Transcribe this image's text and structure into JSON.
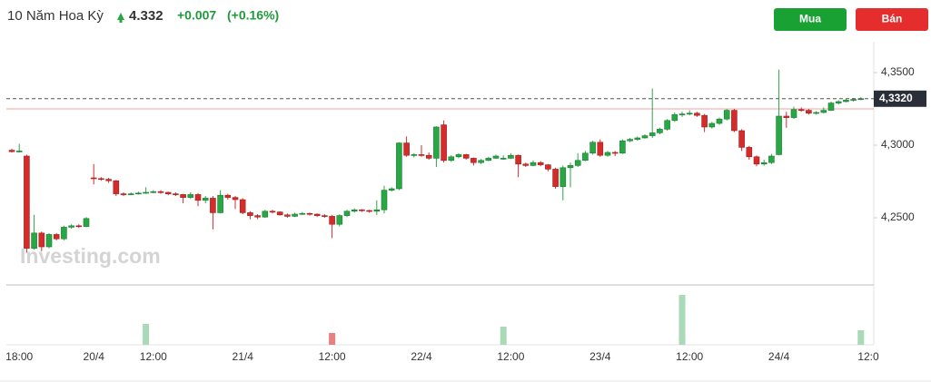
{
  "header": {
    "instrument": "10 Năm Hoa Kỳ",
    "price": "4.332",
    "change": "+0.007",
    "change_pct": "(+0.16%)"
  },
  "buttons": [
    "Mua",
    "Bán"
  ],
  "chart_data": {
    "type": "candlestick",
    "watermark": "Investing.com",
    "up_color": "#27a844",
    "down_color": "#d62b2b",
    "ylim": [
      4.2044,
      4.3656
    ],
    "yticks": [
      {
        "value": 4.35,
        "label": "4,3500"
      },
      {
        "value": 4.3,
        "label": "4,3000"
      },
      {
        "value": 4.25,
        "label": "4,2500"
      }
    ],
    "last_price": {
      "value": 4.332,
      "label": "4,3320"
    },
    "prev_close": 4.325,
    "categories": [
      null,
      "18:00",
      null,
      null,
      null,
      null,
      null,
      null,
      null,
      null,
      null,
      "20/4",
      null,
      null,
      null,
      null,
      null,
      null,
      null,
      "12:00",
      null,
      null,
      null,
      null,
      null,
      null,
      null,
      null,
      null,
      null,
      null,
      "21/4",
      null,
      null,
      null,
      null,
      null,
      null,
      null,
      null,
      null,
      null,
      null,
      "12:00",
      null,
      null,
      null,
      null,
      null,
      null,
      null,
      null,
      null,
      null,
      null,
      "22/4",
      null,
      null,
      null,
      null,
      null,
      null,
      null,
      null,
      null,
      null,
      null,
      "12:00",
      null,
      null,
      null,
      null,
      null,
      null,
      null,
      null,
      null,
      null,
      null,
      "23/4",
      null,
      null,
      null,
      null,
      null,
      null,
      null,
      null,
      null,
      null,
      null,
      "12:00",
      null,
      null,
      null,
      null,
      null,
      null,
      null,
      null,
      null,
      null,
      null,
      "24/4",
      null,
      null,
      null,
      null,
      null,
      null,
      null,
      null,
      null,
      null,
      null,
      "12:0"
    ],
    "open": [
      4.2965,
      4.2955,
      4.2925,
      4.229,
      4.2395,
      4.23,
      4.2385,
      4.2355,
      4.2435,
      4.2445,
      4.244,
      4.2775,
      4.277,
      4.2765,
      4.2755,
      4.2665,
      4.266,
      4.2665,
      4.267,
      4.2675,
      4.268,
      4.2675,
      4.2665,
      4.266,
      4.264,
      4.266,
      4.262,
      4.2635,
      4.2535,
      4.2655,
      4.264,
      4.2625,
      4.2535,
      4.2515,
      4.2505,
      4.2545,
      4.254,
      4.252,
      4.251,
      4.2525,
      4.253,
      4.2525,
      4.2515,
      4.251,
      4.2455,
      4.2515,
      4.2545,
      4.2555,
      4.255,
      4.2545,
      4.2555,
      4.269,
      4.27,
      4.3015,
      4.293,
      4.2935,
      4.293,
      4.291,
      4.314,
      4.2895,
      4.292,
      4.2935,
      4.291,
      4.288,
      4.2895,
      4.291,
      4.2905,
      4.291,
      4.293,
      4.287,
      4.286,
      4.288,
      4.2865,
      4.2835,
      4.2715,
      4.2845,
      4.286,
      4.2895,
      4.2945,
      4.302,
      4.293,
      4.295,
      4.2945,
      4.303,
      4.304,
      4.305,
      4.3065,
      4.3085,
      4.311,
      4.317,
      4.321,
      4.3215,
      4.322,
      4.3205,
      4.3125,
      4.315,
      4.318,
      4.324,
      4.31,
      4.2985,
      4.292,
      4.287,
      4.288,
      4.2935,
      4.32,
      4.319,
      4.3245,
      4.324,
      4.322,
      4.3225,
      4.324,
      4.329,
      4.33,
      4.331,
      4.3315,
      null
    ],
    "high": [
      4.2975,
      4.301,
      4.2935,
      4.252,
      4.2405,
      4.2395,
      4.2395,
      4.2445,
      4.2455,
      4.2455,
      4.2505,
      4.287,
      4.278,
      4.2775,
      4.276,
      4.2675,
      4.2675,
      4.268,
      4.271,
      4.269,
      4.269,
      4.268,
      4.2675,
      4.2665,
      4.2675,
      4.267,
      4.265,
      4.265,
      4.269,
      4.2665,
      4.265,
      4.2635,
      4.2545,
      4.2525,
      4.2555,
      4.2555,
      4.2545,
      4.253,
      4.2535,
      4.254,
      4.2535,
      4.253,
      4.2525,
      4.252,
      4.2525,
      4.2555,
      4.2565,
      4.256,
      4.2555,
      4.262,
      4.272,
      4.271,
      4.302,
      4.306,
      4.2945,
      4.3,
      4.295,
      4.313,
      4.317,
      4.293,
      4.2945,
      4.294,
      4.2915,
      4.2905,
      4.292,
      4.2935,
      4.293,
      4.2945,
      4.2935,
      4.288,
      4.2895,
      4.289,
      4.287,
      4.2845,
      4.286,
      4.288,
      4.2945,
      4.296,
      4.303,
      4.304,
      4.296,
      4.296,
      4.304,
      4.305,
      4.306,
      4.3075,
      4.339,
      4.312,
      4.318,
      4.3225,
      4.323,
      4.324,
      4.323,
      4.3215,
      4.316,
      4.319,
      4.325,
      4.325,
      4.311,
      4.2995,
      4.293,
      4.29,
      4.294,
      4.352,
      4.323,
      4.3265,
      4.326,
      4.325,
      4.3235,
      4.326,
      4.33,
      4.331,
      4.332,
      4.3325,
      4.333,
      null
    ],
    "low": [
      4.295,
      4.295,
      4.226,
      4.228,
      4.227,
      4.229,
      4.2345,
      4.2345,
      4.2425,
      4.243,
      4.2435,
      4.273,
      4.2755,
      4.274,
      4.265,
      4.265,
      4.2655,
      4.266,
      4.2665,
      4.267,
      4.2665,
      4.2655,
      4.265,
      4.26,
      4.263,
      4.258,
      4.26,
      4.242,
      4.253,
      4.2625,
      4.256,
      4.2525,
      4.249,
      4.249,
      4.25,
      4.253,
      4.2515,
      4.25,
      4.2505,
      4.252,
      4.2515,
      4.2505,
      4.25,
      4.236,
      4.244,
      4.2505,
      4.2535,
      4.254,
      4.2535,
      4.252,
      4.253,
      4.268,
      4.269,
      4.292,
      4.2915,
      4.292,
      4.29,
      4.285,
      4.288,
      4.2885,
      4.291,
      4.29,
      4.286,
      4.287,
      4.289,
      4.2905,
      4.29,
      4.2905,
      4.278,
      4.285,
      4.2855,
      4.2855,
      4.282,
      4.27,
      4.262,
      4.271,
      4.285,
      4.289,
      4.2935,
      4.292,
      4.292,
      4.2925,
      4.294,
      4.302,
      4.303,
      4.3045,
      4.305,
      4.3075,
      4.31,
      4.316,
      4.3195,
      4.3205,
      4.3195,
      4.309,
      4.3115,
      4.314,
      4.317,
      4.309,
      4.296,
      4.29,
      4.2855,
      4.286,
      4.287,
      4.293,
      4.312,
      4.318,
      4.323,
      4.321,
      4.321,
      4.322,
      4.3235,
      4.328,
      4.3295,
      4.33,
      4.331,
      null
    ],
    "close": [
      4.2955,
      4.296,
      4.229,
      4.2395,
      4.23,
      4.2385,
      4.2355,
      4.2435,
      4.2445,
      4.244,
      4.2495,
      4.277,
      4.2765,
      4.2755,
      4.2665,
      4.266,
      4.2665,
      4.267,
      4.2675,
      4.268,
      4.2675,
      4.2665,
      4.266,
      4.264,
      4.266,
      4.262,
      4.2635,
      4.2535,
      4.2655,
      4.264,
      4.2625,
      4.2535,
      4.2515,
      4.2505,
      4.2545,
      4.254,
      4.252,
      4.251,
      4.2525,
      4.253,
      4.2525,
      4.2515,
      4.251,
      4.2455,
      4.2515,
      4.2545,
      4.2555,
      4.255,
      4.2545,
      4.2555,
      4.269,
      4.27,
      4.3015,
      4.293,
      4.2935,
      4.293,
      4.291,
      4.3125,
      4.2895,
      4.292,
      4.2935,
      4.291,
      4.288,
      4.2895,
      4.291,
      4.2925,
      4.291,
      4.293,
      4.287,
      4.286,
      4.288,
      4.2865,
      4.2835,
      4.2715,
      4.2845,
      4.286,
      4.2895,
      4.2945,
      4.302,
      4.293,
      4.295,
      4.2945,
      4.303,
      4.304,
      4.305,
      4.3065,
      4.3085,
      4.311,
      4.317,
      4.321,
      4.3215,
      4.322,
      4.3205,
      4.3125,
      4.315,
      4.318,
      4.324,
      4.31,
      4.2985,
      4.292,
      4.287,
      4.288,
      4.2925,
      4.32,
      4.319,
      4.3245,
      4.324,
      4.322,
      4.3225,
      4.324,
      4.329,
      4.33,
      4.331,
      4.3315,
      4.332,
      null
    ],
    "volume": [
      null,
      null,
      null,
      null,
      null,
      null,
      null,
      null,
      null,
      null,
      null,
      null,
      null,
      null,
      null,
      null,
      null,
      null,
      23,
      null,
      null,
      null,
      null,
      null,
      null,
      null,
      null,
      null,
      null,
      null,
      null,
      null,
      null,
      null,
      null,
      null,
      null,
      null,
      null,
      null,
      null,
      null,
      null,
      13,
      null,
      null,
      null,
      null,
      null,
      null,
      null,
      null,
      null,
      null,
      null,
      null,
      null,
      null,
      null,
      null,
      null,
      null,
      null,
      null,
      null,
      null,
      20,
      null,
      null,
      null,
      null,
      null,
      null,
      null,
      null,
      null,
      null,
      null,
      null,
      null,
      null,
      null,
      null,
      null,
      null,
      null,
      null,
      null,
      null,
      null,
      55,
      null,
      null,
      null,
      null,
      null,
      null,
      null,
      null,
      null,
      null,
      null,
      null,
      null,
      null,
      null,
      null,
      null,
      null,
      null,
      null,
      null,
      null,
      null,
      16,
      null
    ]
  }
}
